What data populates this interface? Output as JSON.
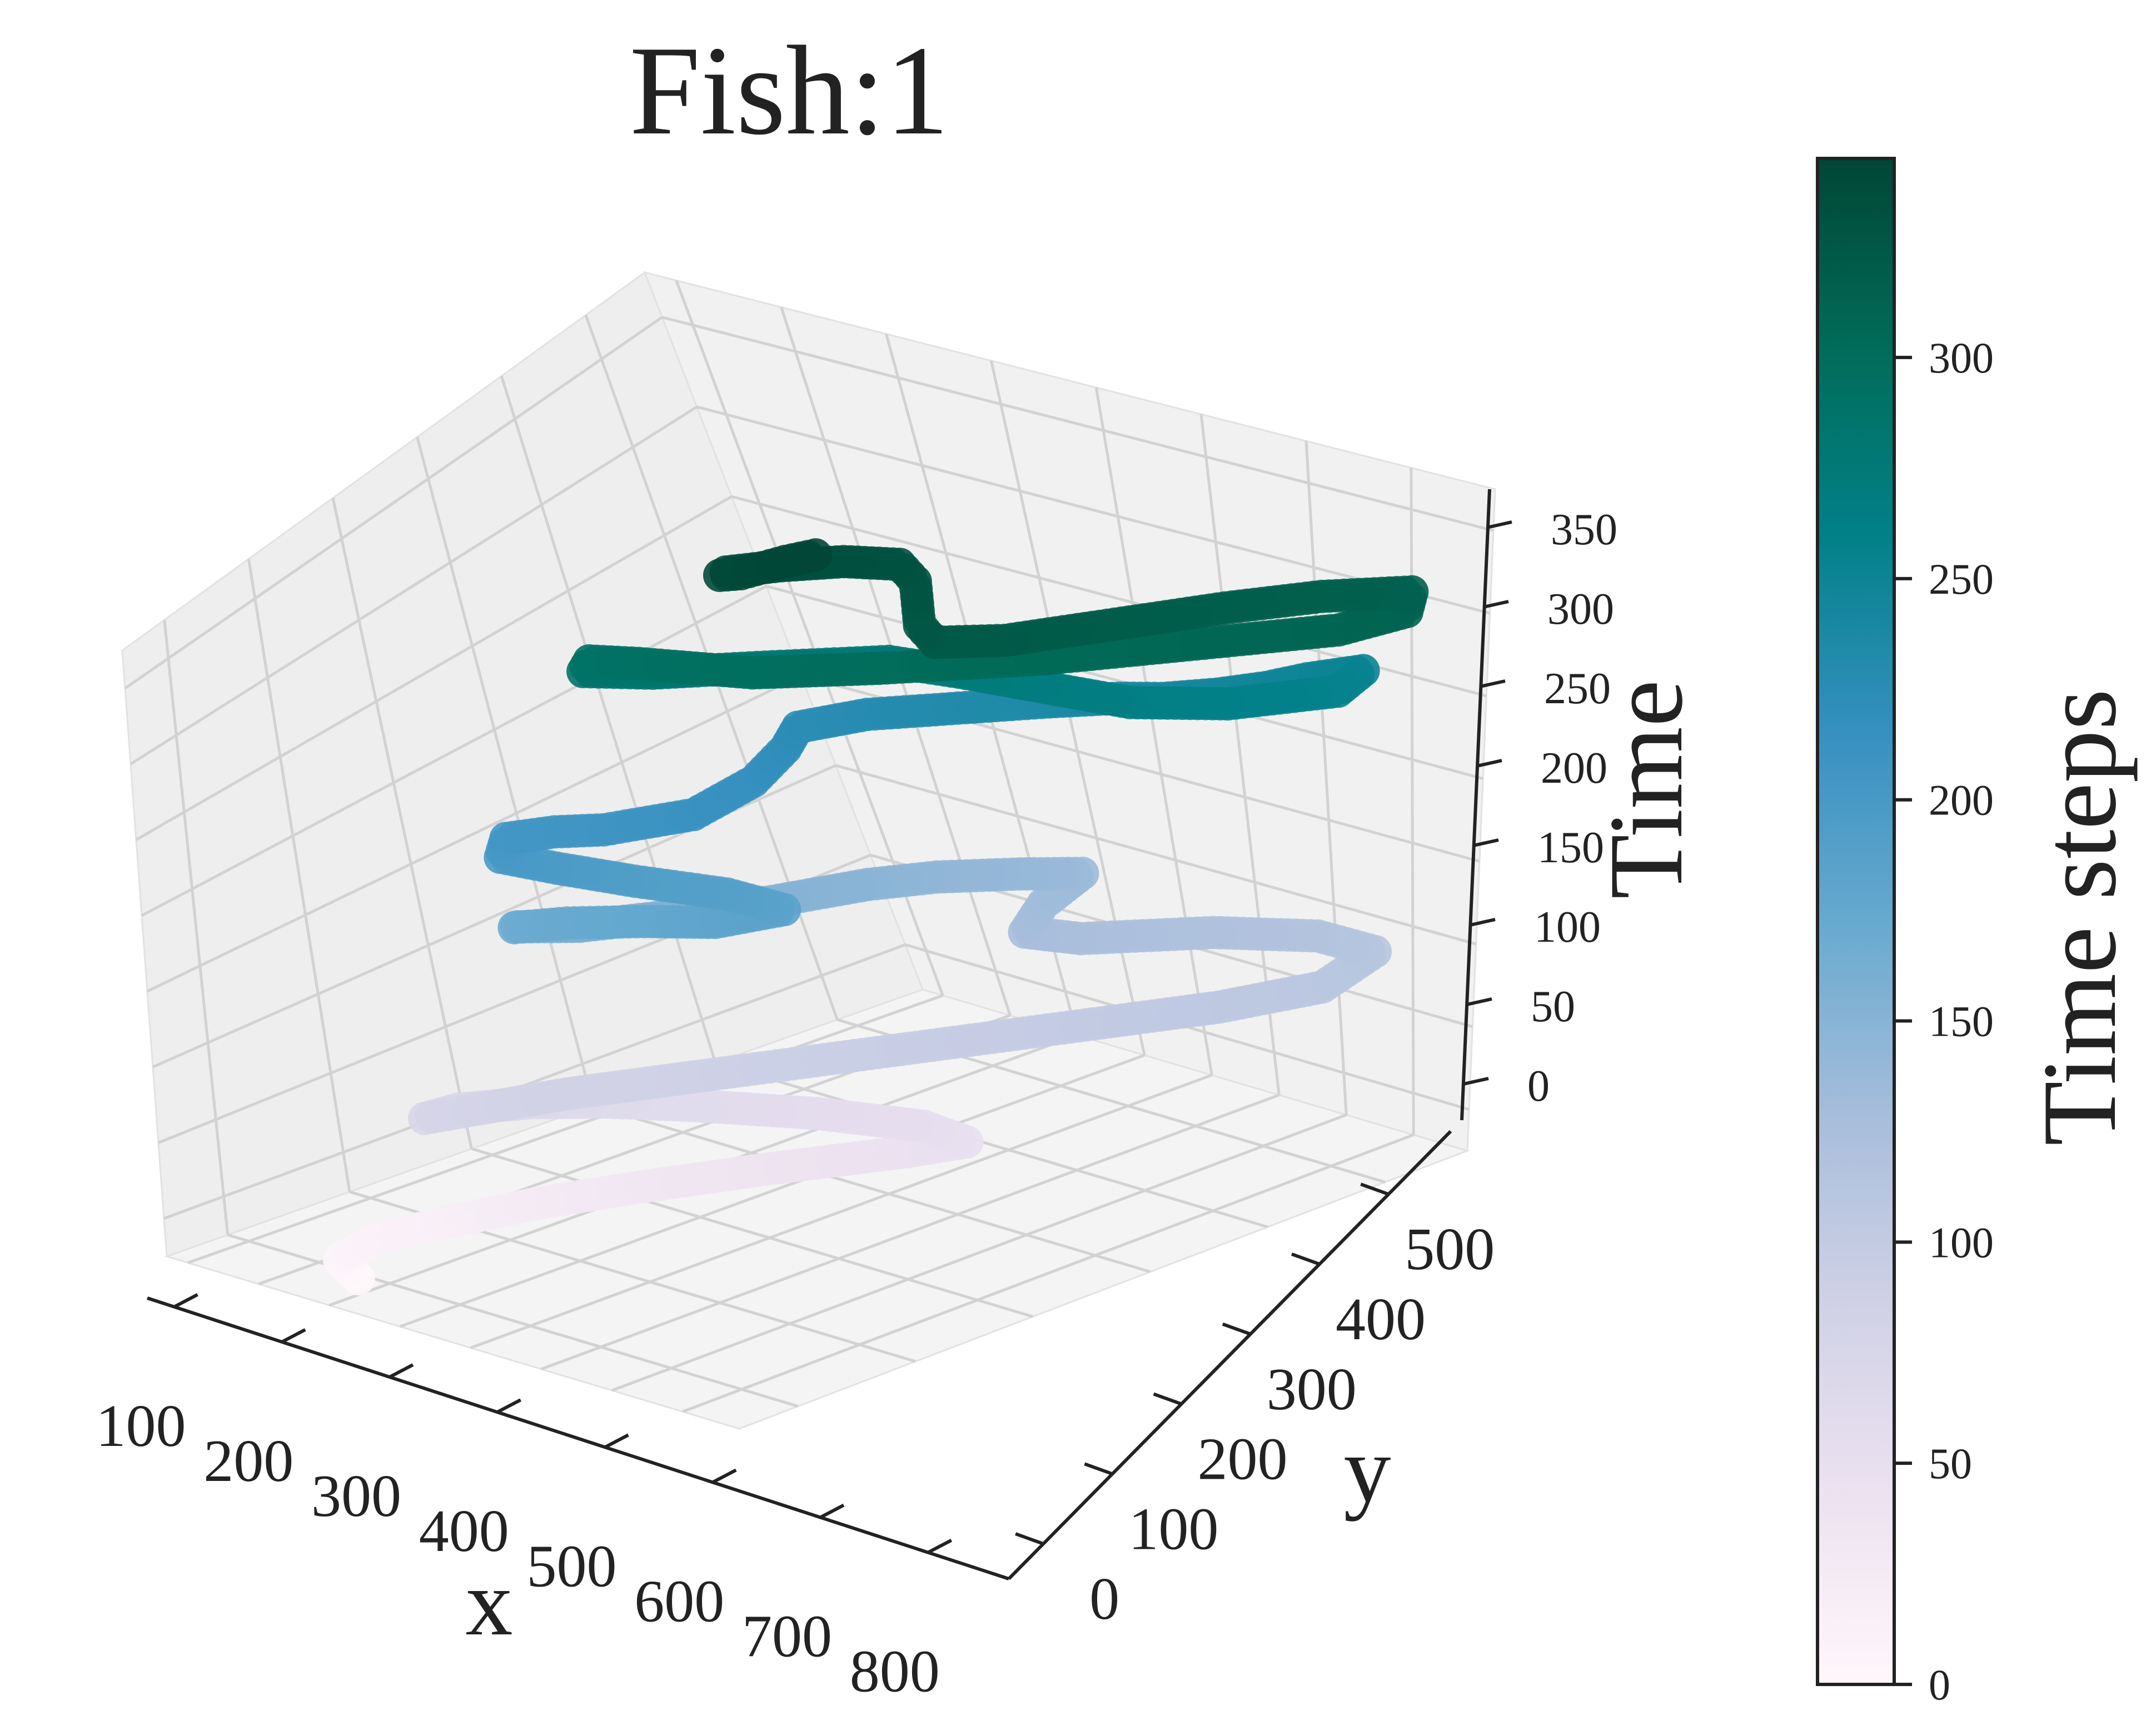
{
  "chart_data": {
    "type": "scatter",
    "projection": "3d",
    "title": "Fish:1",
    "xlabel": "x",
    "ylabel": "y",
    "zlabel": "Time",
    "x_ticks": [
      "100",
      "200",
      "300",
      "400",
      "500",
      "600",
      "700",
      "800"
    ],
    "y_ticks": [
      "0",
      "100",
      "200",
      "300",
      "400",
      "500"
    ],
    "z_ticks": [
      "0",
      "50",
      "100",
      "150",
      "200",
      "250",
      "300",
      "350"
    ],
    "xlim": [
      70,
      860
    ],
    "ylim": [
      0,
      560
    ],
    "zlim": [
      0,
      350
    ],
    "grid": true,
    "colormap": "PuBuGn",
    "colorbar": {
      "label": "Time steps",
      "ticks": [
        "0",
        "50",
        "100",
        "150",
        "200",
        "250",
        "300"
      ],
      "range": [
        0,
        345
      ]
    },
    "series": [
      {
        "color_by": "time",
        "points": [
          [
            260,
            40,
            0
          ],
          [
            225,
            45,
            5
          ],
          [
            235,
            65,
            12
          ],
          [
            275,
            95,
            18
          ],
          [
            330,
            135,
            25
          ],
          [
            400,
            175,
            32
          ],
          [
            490,
            225,
            40
          ],
          [
            575,
            280,
            45
          ],
          [
            610,
            305,
            48
          ],
          [
            560,
            300,
            52
          ],
          [
            470,
            270,
            56
          ],
          [
            380,
            230,
            60
          ],
          [
            320,
            195,
            64
          ],
          [
            280,
            160,
            68
          ],
          [
            255,
            120,
            72
          ],
          [
            265,
            90,
            76
          ],
          [
            300,
            110,
            80
          ],
          [
            350,
            150,
            84
          ],
          [
            420,
            200,
            88
          ],
          [
            500,
            260,
            92
          ],
          [
            580,
            320,
            96
          ],
          [
            660,
            380,
            100
          ],
          [
            730,
            430,
            104
          ],
          [
            780,
            480,
            108
          ],
          [
            760,
            530,
            112
          ],
          [
            700,
            520,
            116
          ],
          [
            630,
            480,
            120
          ],
          [
            560,
            420,
            124
          ],
          [
            520,
            400,
            128
          ],
          [
            490,
            430,
            132
          ],
          [
            470,
            470,
            136
          ],
          [
            440,
            440,
            140
          ],
          [
            400,
            400,
            144
          ],
          [
            380,
            360,
            148
          ],
          [
            360,
            300,
            152
          ],
          [
            330,
            240,
            156
          ],
          [
            300,
            190,
            160
          ],
          [
            270,
            160,
            164
          ],
          [
            285,
            150,
            168
          ],
          [
            330,
            165,
            172
          ],
          [
            400,
            185,
            176
          ],
          [
            470,
            200,
            180
          ],
          [
            510,
            230,
            184
          ],
          [
            450,
            220,
            188
          ],
          [
            370,
            195,
            192
          ],
          [
            300,
            175,
            196
          ],
          [
            250,
            160,
            200
          ],
          [
            230,
            175,
            204
          ],
          [
            260,
            195,
            206
          ],
          [
            300,
            210,
            208
          ],
          [
            350,
            250,
            212
          ],
          [
            340,
            300,
            216
          ],
          [
            310,
            340,
            220
          ],
          [
            290,
            360,
            224
          ],
          [
            330,
            390,
            228
          ],
          [
            400,
            420,
            232
          ],
          [
            470,
            450,
            236
          ],
          [
            530,
            470,
            240
          ],
          [
            570,
            480,
            242
          ],
          [
            610,
            500,
            244
          ],
          [
            640,
            520,
            246
          ],
          [
            660,
            540,
            248
          ],
          [
            700,
            560,
            252
          ],
          [
            740,
            520,
            256
          ],
          [
            700,
            460,
            260
          ],
          [
            640,
            420,
            264
          ],
          [
            560,
            400,
            268
          ],
          [
            480,
            380,
            272
          ],
          [
            420,
            360,
            276
          ],
          [
            350,
            300,
            280
          ],
          [
            300,
            250,
            284
          ],
          [
            260,
            220,
            288
          ],
          [
            250,
            230,
            290
          ],
          [
            300,
            240,
            292
          ],
          [
            360,
            250,
            294
          ],
          [
            420,
            260,
            296
          ],
          [
            470,
            280,
            298
          ],
          [
            520,
            300,
            300
          ],
          [
            580,
            330,
            302
          ],
          [
            640,
            360,
            304
          ],
          [
            700,
            400,
            306
          ],
          [
            760,
            440,
            308
          ],
          [
            820,
            480,
            310
          ],
          [
            840,
            520,
            312
          ],
          [
            810,
            540,
            314
          ],
          [
            760,
            500,
            316
          ],
          [
            720,
            450,
            318
          ],
          [
            680,
            390,
            320
          ],
          [
            640,
            330,
            322
          ],
          [
            600,
            300,
            324
          ],
          [
            560,
            310,
            326
          ],
          [
            520,
            330,
            328
          ],
          [
            480,
            350,
            330
          ],
          [
            440,
            360,
            332
          ],
          [
            400,
            340,
            334
          ],
          [
            370,
            310,
            336
          ],
          [
            350,
            280,
            338
          ],
          [
            360,
            270,
            340
          ],
          [
            380,
            275,
            342
          ],
          [
            395,
            300,
            344
          ],
          [
            410,
            320,
            345
          ]
        ]
      }
    ]
  }
}
